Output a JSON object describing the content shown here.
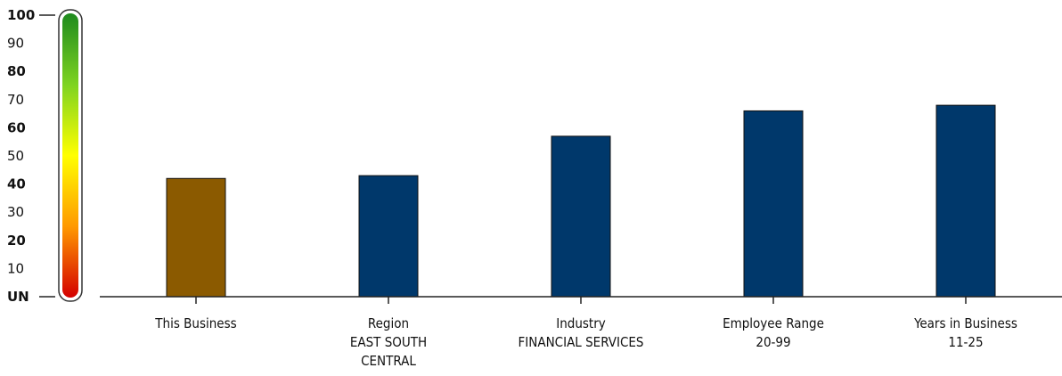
{
  "chart_data": {
    "type": "bar",
    "title": "",
    "xlabel": "",
    "ylabel": "",
    "ylim": [
      0,
      100
    ],
    "y_ticks": [
      {
        "value": 100,
        "label": "100"
      },
      {
        "value": 90,
        "label": "90"
      },
      {
        "value": 80,
        "label": "80"
      },
      {
        "value": 70,
        "label": "70"
      },
      {
        "value": 60,
        "label": "60"
      },
      {
        "value": 50,
        "label": "50"
      },
      {
        "value": 40,
        "label": "40"
      },
      {
        "value": 30,
        "label": "30"
      },
      {
        "value": 20,
        "label": "20"
      },
      {
        "value": 10,
        "label": "10"
      },
      {
        "value": 0,
        "label": "UN"
      }
    ],
    "categories": [
      {
        "lines": [
          "This Business"
        ]
      },
      {
        "lines": [
          "Region",
          "EAST SOUTH",
          "CENTRAL"
        ]
      },
      {
        "lines": [
          "Industry",
          "FINANCIAL SERVICES"
        ]
      },
      {
        "lines": [
          "Employee Range",
          "20-99"
        ]
      },
      {
        "lines": [
          "Years in Business",
          "11-25"
        ]
      }
    ],
    "values": [
      42,
      43,
      57,
      66,
      68
    ],
    "bar_colors": [
      "#8b5a00",
      "#00386b",
      "#00386b",
      "#00386b",
      "#00386b"
    ],
    "gauge_colors": [
      "#d40000",
      "#ff9900",
      "#ffff00",
      "#7ed321",
      "#1e8a1e"
    ],
    "grid": false,
    "legend": "none"
  }
}
